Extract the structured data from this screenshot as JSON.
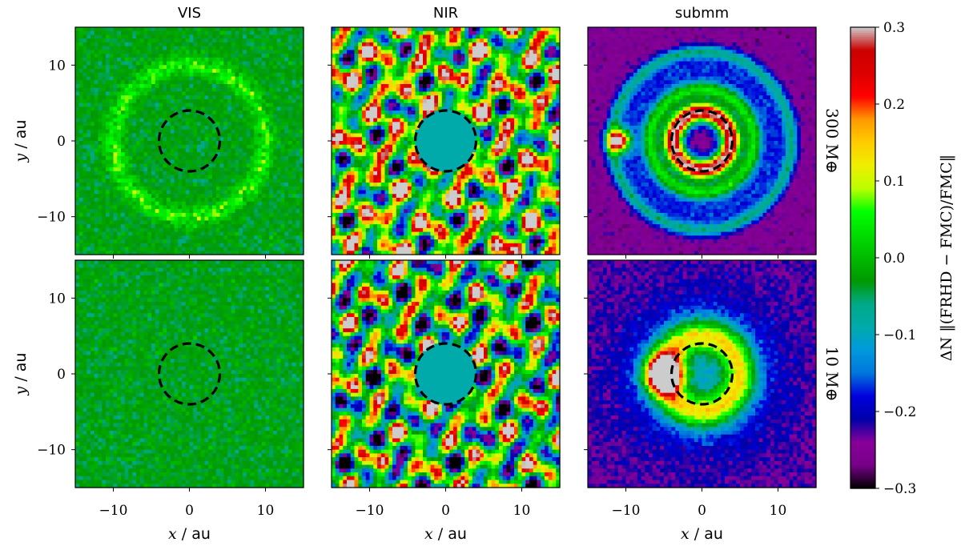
{
  "chart_data": {
    "type": "heatmap",
    "columns": [
      "VIS",
      "NIR",
      "submm"
    ],
    "rows": [
      "300 M⊕",
      "10 M⊕"
    ],
    "xlabel": {
      "var": "x",
      "unit": "au"
    },
    "ylabel": {
      "var": "y",
      "unit": "au"
    },
    "xlim": [
      -15,
      15
    ],
    "ylim": [
      -15,
      15
    ],
    "xticks": [
      -10,
      0,
      10
    ],
    "yticks": [
      -10,
      0,
      10
    ],
    "mask_radius_au": 4,
    "colorbar": {
      "label": "ΔN ‖(FRHD − FMC)/FMC‖",
      "colormap": "nipy_spectral",
      "vmin": -0.3,
      "vmax": 0.3,
      "ticks": [
        -0.3,
        -0.2,
        -0.1,
        0.0,
        0.1,
        0.2,
        0.3
      ]
    },
    "panels": [
      {
        "row": 0,
        "col": 0,
        "pattern": "noise_ring",
        "ring_radius_au": 10,
        "ring_amplitude": 0.08,
        "noise": 0.025,
        "baseline": -0.03
      },
      {
        "row": 0,
        "col": 1,
        "pattern": "blobs_saturated",
        "noise": 0.3,
        "baseline": 0.05
      },
      {
        "row": 0,
        "col": 2,
        "pattern": "rings",
        "rings_au": [
          3.5,
          6.5,
          9.5,
          11.5
        ],
        "planet_au": [
          -11,
          0
        ],
        "baseline": -0.25
      },
      {
        "row": 1,
        "col": 0,
        "pattern": "noise",
        "noise": 0.025,
        "baseline": -0.03
      },
      {
        "row": 1,
        "col": 1,
        "pattern": "blobs_saturated",
        "noise": 0.3,
        "baseline": 0.0
      },
      {
        "row": 1,
        "col": 2,
        "pattern": "crescent",
        "peak_au": [
          -5,
          0
        ],
        "baseline": -0.23
      }
    ]
  },
  "labels": {
    "col_titles": [
      "VIS",
      "NIR",
      "submm"
    ],
    "row_labels": [
      "300 M⊕",
      "10 M⊕"
    ],
    "x_var": "x",
    "x_unit": "au",
    "y_var": "y",
    "y_unit": "au",
    "cbar_label": "ΔN ‖(FRHD − FMC)/FMC‖"
  }
}
